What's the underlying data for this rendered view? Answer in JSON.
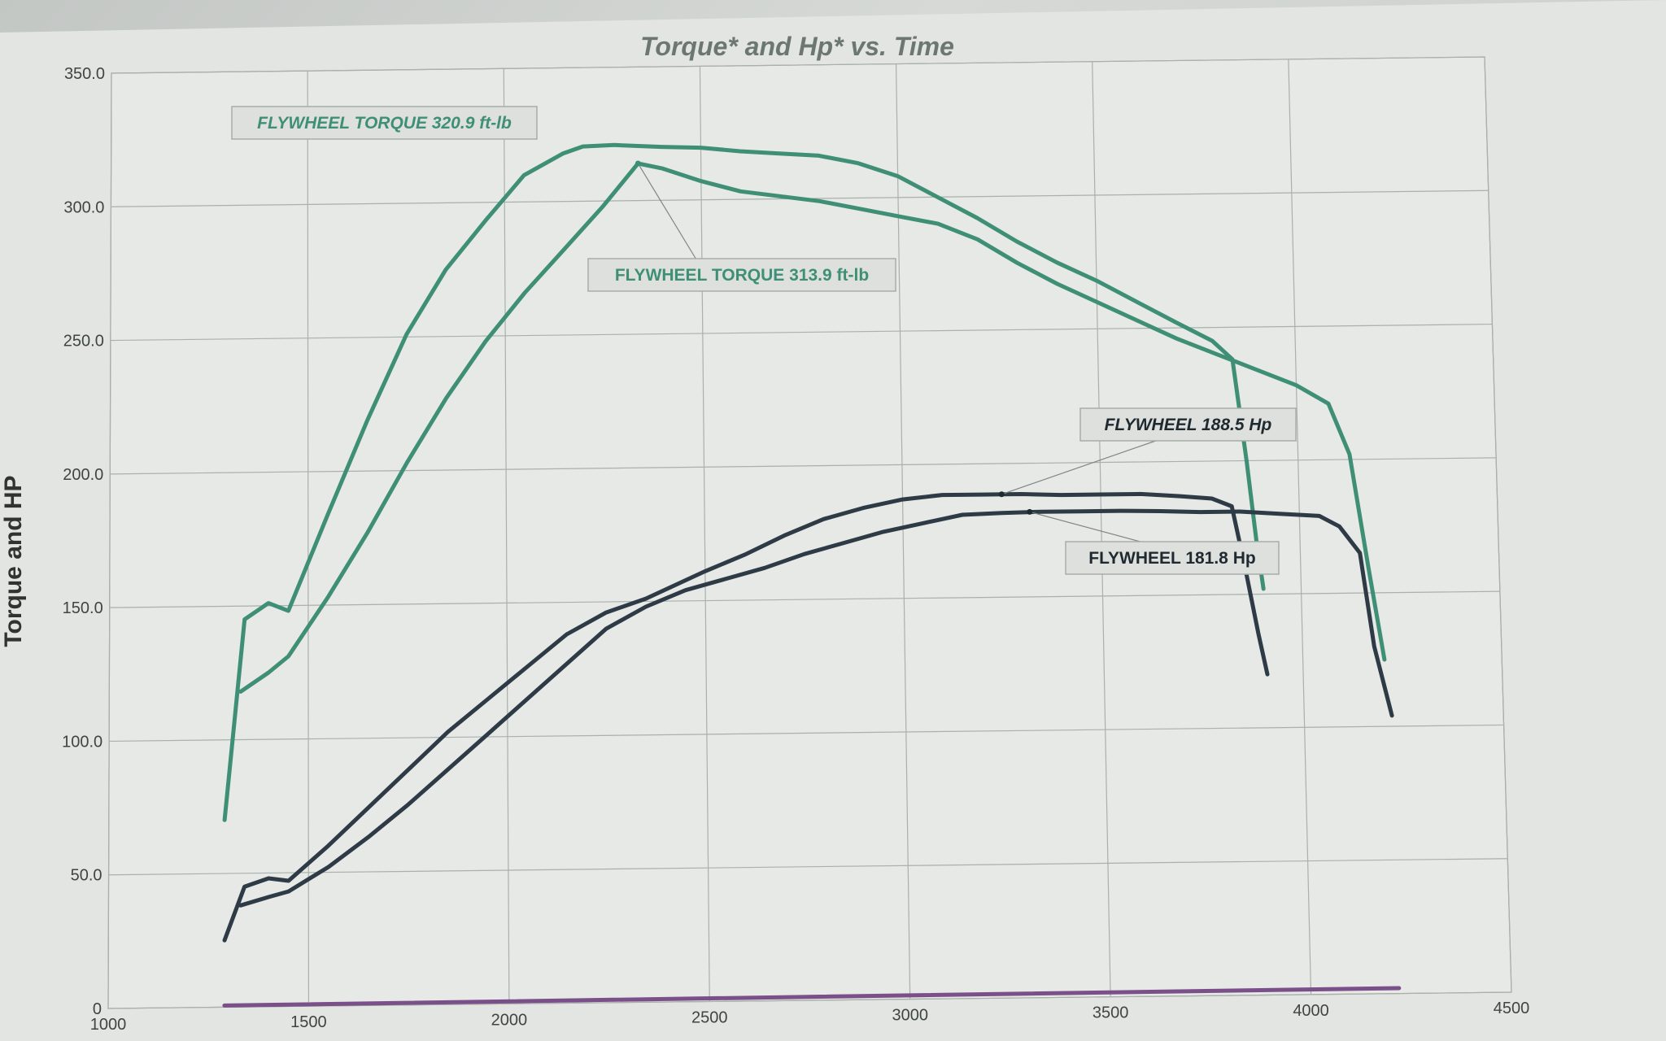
{
  "chart_data": {
    "type": "line",
    "title": "Torque* and Hp* vs. Time",
    "xlabel": "",
    "ylabel": "Torque and HP",
    "xlim": [
      1000,
      4500
    ],
    "ylim": [
      0,
      350
    ],
    "x_ticks": [
      "1000",
      "1500",
      "2000",
      "2500",
      "3000",
      "3500",
      "4000",
      "4500"
    ],
    "y_ticks": [
      "0",
      "50.0",
      "100.0",
      "150.0",
      "200.0",
      "250.0",
      "300.0",
      "350.0"
    ],
    "grid": true,
    "colors": {
      "torque": "#3f8f76",
      "hp": "#2e3a45",
      "baseline": "#7a4f8a"
    },
    "series": [
      {
        "id": "torque-a",
        "kind": "torque",
        "x": [
          1290,
          1340,
          1400,
          1450,
          1550,
          1650,
          1750,
          1850,
          1950,
          2050,
          2150,
          2200,
          2280,
          2400,
          2500,
          2600,
          2700,
          2800,
          2900,
          3000,
          3100,
          3200,
          3300,
          3400,
          3500,
          3600,
          3700,
          3790,
          3840,
          3870,
          3890,
          3905
        ],
        "y": [
          70,
          145,
          151,
          148,
          184,
          219,
          251,
          275,
          293,
          310,
          318,
          320.5,
          320.9,
          320,
          319.5,
          318,
          317,
          316,
          313,
          308,
          300,
          292,
          283,
          275,
          268,
          260,
          252,
          245,
          238,
          200,
          170,
          152
        ]
      },
      {
        "id": "torque-b",
        "kind": "torque",
        "x": [
          1330,
          1400,
          1450,
          1550,
          1650,
          1750,
          1850,
          1950,
          2050,
          2150,
          2250,
          2340,
          2400,
          2500,
          2600,
          2700,
          2800,
          2900,
          3000,
          3100,
          3200,
          3300,
          3400,
          3500,
          3600,
          3700,
          3800,
          3900,
          4000,
          4080,
          4130,
          4170,
          4205
        ],
        "y": [
          118,
          125,
          131,
          153,
          177,
          203,
          227,
          248,
          266,
          282,
          298,
          313.9,
          312,
          307,
          303,
          301,
          299,
          296,
          293,
          290,
          284,
          275,
          267,
          260,
          253,
          246,
          240,
          234,
          228,
          221,
          202,
          160,
          125
        ]
      },
      {
        "id": "hp-a",
        "kind": "hp",
        "x": [
          1290,
          1340,
          1400,
          1450,
          1550,
          1650,
          1750,
          1850,
          1950,
          2050,
          2150,
          2250,
          2350,
          2500,
          2600,
          2700,
          2800,
          2900,
          3000,
          3100,
          3200,
          3300,
          3400,
          3500,
          3600,
          3700,
          3780,
          3830,
          3860,
          3890,
          3910
        ],
        "y": [
          25,
          45,
          48,
          47,
          60,
          74,
          88,
          102,
          114,
          126,
          138,
          146,
          151,
          161,
          167,
          174,
          180,
          184,
          187,
          188.5,
          188.5,
          188.5,
          188,
          188,
          188,
          187,
          186,
          183,
          160,
          135,
          120
        ]
      },
      {
        "id": "hp-b",
        "kind": "hp",
        "x": [
          1330,
          1400,
          1450,
          1550,
          1650,
          1750,
          1850,
          1950,
          2050,
          2150,
          2250,
          2350,
          2450,
          2550,
          2650,
          2750,
          2850,
          2950,
          3050,
          3150,
          3250,
          3350,
          3450,
          3550,
          3650,
          3750,
          3850,
          3950,
          4050,
          4100,
          4150,
          4180,
          4220
        ],
        "y": [
          38,
          41,
          43,
          52,
          63,
          75,
          88,
          101,
          114,
          127,
          140,
          148,
          154,
          158,
          162,
          167,
          171,
          175,
          178,
          181,
          181.5,
          181.8,
          181.8,
          181.8,
          181.5,
          181,
          181,
          180,
          179,
          175,
          165,
          130,
          104
        ]
      },
      {
        "id": "baseline",
        "kind": "baseline",
        "x": [
          1290,
          4220
        ],
        "y": [
          0.6,
          2
        ]
      }
    ],
    "annotations": [
      {
        "id": "anno-torque-a",
        "text": "FLYWHEEL TORQUE 320.9 ft-lb",
        "italic": true
      },
      {
        "id": "anno-torque-b",
        "text": "FLYWHEEL TORQUE  313.9 ft-lb",
        "italic": false
      },
      {
        "id": "anno-hp-a",
        "text": "FLYWHEEL 188.5 Hp",
        "italic": true
      },
      {
        "id": "anno-hp-b",
        "text": "FLYWHEEL 181.8 Hp",
        "italic": false
      }
    ]
  }
}
